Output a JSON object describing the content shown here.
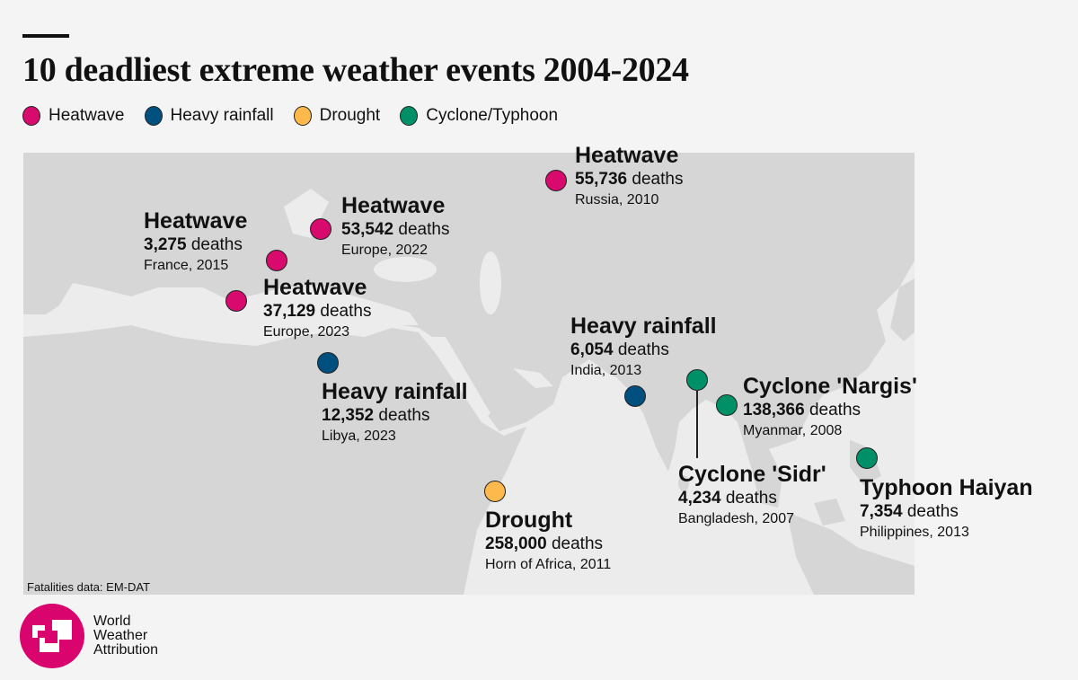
{
  "title": "10 deadliest extreme weather events 2004-2024",
  "colors": {
    "heatwave": "#d90a6e",
    "heavy_rainfall": "#00507f",
    "drought": "#fdb94c",
    "cyclone": "#009068",
    "land": "#d6d6d6",
    "sea": "#ececec"
  },
  "legend": [
    {
      "label": "Heatwave",
      "type": "heatwave"
    },
    {
      "label": "Heavy rainfall",
      "type": "heavy_rainfall"
    },
    {
      "label": "Drought",
      "type": "drought"
    },
    {
      "label": "Cyclone/Typhoon",
      "type": "cyclone"
    }
  ],
  "events": [
    {
      "title": "Heatwave",
      "deaths": "55,736",
      "deaths_unit": "deaths",
      "place": "Russia, 2010",
      "type": "heatwave"
    },
    {
      "title": "Heatwave",
      "deaths": "53,542",
      "deaths_unit": "deaths",
      "place": "Europe, 2022",
      "type": "heatwave"
    },
    {
      "title": "Heatwave",
      "deaths": "3,275",
      "deaths_unit": "deaths",
      "place": "France, 2015",
      "type": "heatwave"
    },
    {
      "title": "Heatwave",
      "deaths": "37,129",
      "deaths_unit": "deaths",
      "place": "Europe, 2023",
      "type": "heatwave"
    },
    {
      "title": "Heavy rainfall",
      "deaths": "12,352",
      "deaths_unit": "deaths",
      "place": "Libya, 2023",
      "type": "heavy_rainfall"
    },
    {
      "title": "Heavy rainfall",
      "deaths": "6,054",
      "deaths_unit": "deaths",
      "place": "India, 2013",
      "type": "heavy_rainfall"
    },
    {
      "title": "Cyclone 'Nargis'",
      "deaths": "138,366",
      "deaths_unit": "deaths",
      "place": "Myanmar, 2008",
      "type": "cyclone"
    },
    {
      "title": "Cyclone 'Sidr'",
      "deaths": "4,234",
      "deaths_unit": "deaths",
      "place": "Bangladesh, 2007",
      "type": "cyclone"
    },
    {
      "title": "Typhoon Haiyan",
      "deaths": "7,354",
      "deaths_unit": "deaths",
      "place": "Philippines, 2013",
      "type": "cyclone"
    },
    {
      "title": "Drought",
      "deaths": "258,000",
      "deaths_unit": "deaths",
      "place": "Horn of Africa, 2011",
      "type": "drought"
    }
  ],
  "source": "Fatalities data: EM-DAT",
  "logo": {
    "line1": "World",
    "line2": "Weather",
    "line3": "Attribution"
  }
}
